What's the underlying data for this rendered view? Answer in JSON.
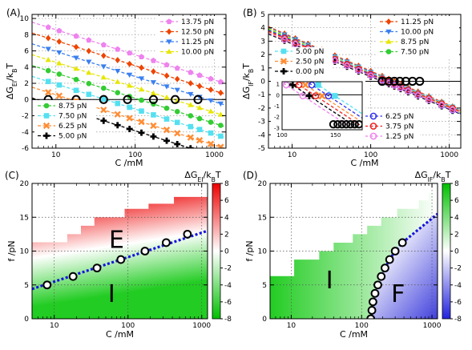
{
  "chart_data": [
    {
      "type": "line",
      "panel_label": "(A)",
      "ylabel_main": "ΔG",
      "ylabel_sub": "EI",
      "ylabel_tail": "/k",
      "ylabel_sub2": "B",
      "ylabel_end": "T",
      "xlabel": "C /mM",
      "xscale": "log",
      "xlim": [
        5,
        1400
      ],
      "ylim": [
        -6,
        10.5
      ],
      "xticks": [
        10,
        100,
        1000
      ],
      "xtick_labels": [
        "10",
        "100",
        "1000"
      ],
      "yticks": [
        -6,
        -4,
        -2,
        0,
        2,
        4,
        6,
        8,
        10
      ],
      "ytick_labels": [
        "-6",
        "-4",
        "-2",
        "0",
        "2",
        "4",
        "6",
        "8",
        "10"
      ],
      "grid": true,
      "series": [
        {
          "name": "13.75 pN",
          "color": "#ee82ee",
          "marker": "pentagon",
          "f": 13.75
        },
        {
          "name": "12.50 pN",
          "color": "#ee4400",
          "marker": "diamond",
          "f": 12.5
        },
        {
          "name": "11.25 pN",
          "color": "#3a7ff0",
          "marker": "triangle-down",
          "f": 11.25
        },
        {
          "name": "10.00 pN",
          "color": "#e6e600",
          "marker": "triangle-up",
          "f": 10.0
        },
        {
          "name": "8.75 pN",
          "color": "#33cc33",
          "marker": "circle",
          "f": 8.75
        },
        {
          "name": "7.50 pN",
          "color": "#55e0f0",
          "marker": "square",
          "f": 7.5
        },
        {
          "name": "6.25 pN",
          "color": "#ff8c33",
          "marker": "x",
          "f": 6.25
        },
        {
          "name": "5.00 pN",
          "color": "#000000",
          "marker": "plus",
          "f": 5.0
        }
      ],
      "crossings": [
        {
          "x": 8,
          "y": 0
        },
        {
          "x": 18,
          "y": 0
        },
        {
          "x": 40,
          "y": 0
        },
        {
          "x": 80,
          "y": 0
        },
        {
          "x": 170,
          "y": 0
        },
        {
          "x": 320,
          "y": 0
        },
        {
          "x": 620,
          "y": 0
        }
      ]
    },
    {
      "type": "line",
      "panel_label": "(B)",
      "ylabel_main": "ΔG",
      "ylabel_sub": "IF",
      "ylabel_tail": "/k",
      "ylabel_sub2": "B",
      "ylabel_end": "T",
      "xlabel": "C /mM",
      "xscale": "log",
      "xlim": [
        5,
        1400
      ],
      "ylim": [
        -5,
        5
      ],
      "xticks": [
        10,
        100,
        1000
      ],
      "xtick_labels": [
        "10",
        "100",
        "1000"
      ],
      "yticks": [
        -5,
        -4,
        -3,
        -2,
        -1,
        0,
        1,
        2,
        3,
        4,
        5
      ],
      "ytick_labels": [
        "-5",
        "-4",
        "-3",
        "-2",
        "-1",
        "0",
        "1",
        "2",
        "3",
        "4",
        "5"
      ],
      "grid": true,
      "series": [
        {
          "name": "11.25 pN",
          "color": "#ee4400",
          "marker": "diamond",
          "f": 11.25
        },
        {
          "name": "10.00 pN",
          "color": "#3a7ff0",
          "marker": "triangle-down",
          "f": 10.0
        },
        {
          "name": "8.75 pN",
          "color": "#e6e600",
          "marker": "triangle-up",
          "f": 8.75
        },
        {
          "name": "7.50 pN",
          "color": "#33cc33",
          "marker": "circle",
          "f": 7.5
        },
        {
          "name": "5.00 pN",
          "color": "#55e0f0",
          "marker": "square",
          "f": 5.0
        },
        {
          "name": "2.50 pN",
          "color": "#ff8c33",
          "marker": "x",
          "f": 2.5
        },
        {
          "name": "0.00 pN",
          "color": "#000000",
          "marker": "plus",
          "f": 0.0
        },
        {
          "name": "6.25 pN",
          "color": "#3333ee",
          "marker": "circle-open",
          "f": 6.25
        },
        {
          "name": "3.75 pN",
          "color": "#ee2222",
          "marker": "circle-open",
          "f": 3.75
        },
        {
          "name": "1.25 pN",
          "color": "#ee82ee",
          "marker": "circle-open",
          "f": 1.25
        }
      ],
      "crossings": [
        {
          "x": 140,
          "y": 0
        },
        {
          "x": 170,
          "y": 0
        },
        {
          "x": 200,
          "y": 0
        },
        {
          "x": 235,
          "y": 0
        },
        {
          "x": 280,
          "y": 0
        },
        {
          "x": 340,
          "y": 0
        },
        {
          "x": 420,
          "y": 0
        }
      ],
      "inset": {
        "xlim": [
          100,
          175
        ],
        "ylim": [
          -3.2,
          1.2
        ],
        "xticks": [
          100,
          150
        ],
        "xtick_labels": [
          "100",
          "150"
        ],
        "yticks": [
          -3,
          -2,
          -1,
          0,
          1
        ],
        "ytick_labels": [
          "-3",
          "-2",
          "-1",
          "0",
          "1"
        ]
      }
    },
    {
      "type": "heatmap",
      "panel_label": "(C)",
      "colorbar_label_main": "ΔG",
      "colorbar_label_sub": "EI",
      "colorbar_label_tail": "/k",
      "colorbar_label_sub2": "B",
      "colorbar_label_end": "T",
      "xlabel": "C /mM",
      "ylabel": "f /pN",
      "xscale": "log",
      "xlim": [
        5,
        1200
      ],
      "ylim": [
        0,
        20
      ],
      "xticks": [
        10,
        100,
        1000
      ],
      "xtick_labels": [
        "10",
        "100",
        "1000"
      ],
      "yticks": [
        0,
        5,
        10,
        15,
        20
      ],
      "ytick_labels": [
        "0",
        "5",
        "10",
        "15",
        "20"
      ],
      "zlim": [
        -8,
        8
      ],
      "zticks": [
        -8,
        -6,
        -4,
        -2,
        0,
        2,
        4,
        6,
        8
      ],
      "ztick_labels": [
        "-8",
        "-6",
        "-4",
        "-2",
        "0",
        "2",
        "4",
        "6",
        "8"
      ],
      "region_labels": [
        {
          "text": "E",
          "x": 70,
          "y": 10.5
        },
        {
          "text": "I",
          "x": 60,
          "y": 2.5
        }
      ],
      "boundary_points": [
        {
          "x": 8,
          "y": 5.0
        },
        {
          "x": 18,
          "y": 6.25
        },
        {
          "x": 38,
          "y": 7.5
        },
        {
          "x": 80,
          "y": 8.75
        },
        {
          "x": 170,
          "y": 10.0
        },
        {
          "x": 330,
          "y": 11.25
        },
        {
          "x": 640,
          "y": 12.5
        }
      ],
      "data_edge": [
        {
          "c": 5,
          "f": 11.3
        },
        {
          "c": 15,
          "f": 11.3
        },
        {
          "c": 15,
          "f": 12.5
        },
        {
          "c": 23,
          "f": 12.5
        },
        {
          "c": 23,
          "f": 13.75
        },
        {
          "c": 35,
          "f": 13.75
        },
        {
          "c": 35,
          "f": 15.0
        },
        {
          "c": 90,
          "f": 15.0
        },
        {
          "c": 90,
          "f": 16.25
        },
        {
          "c": 190,
          "f": 16.25
        },
        {
          "c": 190,
          "f": 17.0
        },
        {
          "c": 420,
          "f": 17.0
        },
        {
          "c": 420,
          "f": 18.0
        },
        {
          "c": 1200,
          "f": 18.0
        }
      ]
    },
    {
      "type": "heatmap",
      "panel_label": "(D)",
      "colorbar_label_main": "ΔG",
      "colorbar_label_sub": "IF",
      "colorbar_label_tail": "/k",
      "colorbar_label_sub2": "B",
      "colorbar_label_end": "T",
      "xlabel": "C /mM",
      "ylabel": "f /pN",
      "xscale": "log",
      "xlim": [
        5,
        1200
      ],
      "ylim": [
        0,
        20
      ],
      "xticks": [
        10,
        100,
        1000
      ],
      "xtick_labels": [
        "10",
        "100",
        "1000"
      ],
      "yticks": [
        0,
        5,
        10,
        15,
        20
      ],
      "ytick_labels": [
        "0",
        "5",
        "10",
        "15",
        "20"
      ],
      "zlim": [
        -8,
        8
      ],
      "zticks": [
        -8,
        -6,
        -4,
        -2,
        0,
        2,
        4,
        6,
        8
      ],
      "ztick_labels": [
        "-8",
        "-6",
        "-4",
        "-2",
        "0",
        "2",
        "4",
        "6",
        "8"
      ],
      "region_labels": [
        {
          "text": "I",
          "x": 35,
          "y": 4.5
        },
        {
          "text": "F",
          "x": 330,
          "y": 2.5
        }
      ],
      "boundary_points": [
        {
          "x": 135,
          "y": 0
        },
        {
          "x": 140,
          "y": 1.25
        },
        {
          "x": 145,
          "y": 2.5
        },
        {
          "x": 155,
          "y": 3.75
        },
        {
          "x": 170,
          "y": 5.0
        },
        {
          "x": 190,
          "y": 6.25
        },
        {
          "x": 215,
          "y": 7.5
        },
        {
          "x": 250,
          "y": 8.75
        },
        {
          "x": 300,
          "y": 10.0
        },
        {
          "x": 380,
          "y": 11.25
        }
      ],
      "data_edge": [
        {
          "c": 5,
          "f": 6.3
        },
        {
          "c": 11,
          "f": 6.3
        },
        {
          "c": 11,
          "f": 8.75
        },
        {
          "c": 25,
          "f": 8.75
        },
        {
          "c": 25,
          "f": 10.0
        },
        {
          "c": 40,
          "f": 10.0
        },
        {
          "c": 40,
          "f": 11.25
        },
        {
          "c": 75,
          "f": 11.25
        },
        {
          "c": 75,
          "f": 12.5
        },
        {
          "c": 120,
          "f": 12.5
        },
        {
          "c": 120,
          "f": 13.75
        },
        {
          "c": 190,
          "f": 13.75
        },
        {
          "c": 190,
          "f": 15.0
        },
        {
          "c": 320,
          "f": 15.0
        },
        {
          "c": 320,
          "f": 16.25
        },
        {
          "c": 650,
          "f": 16.25
        },
        {
          "c": 650,
          "f": 17.5
        },
        {
          "c": 900,
          "f": 17.5
        },
        {
          "c": 900,
          "f": 18.5
        },
        {
          "c": 1200,
          "f": 18.5
        }
      ]
    }
  ]
}
